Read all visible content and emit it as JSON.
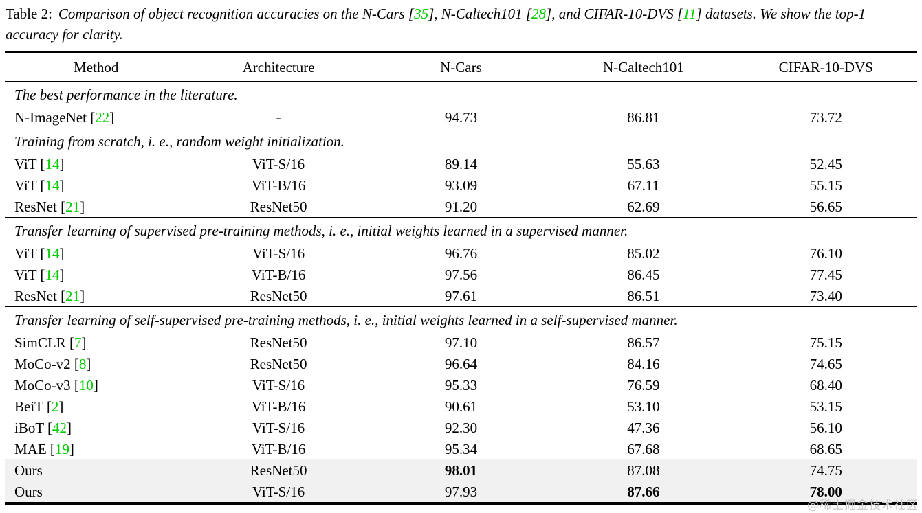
{
  "colors": {
    "citation_green": "#00cc00",
    "highlight_row_bg": "#f1f1f1",
    "rule_color": "#000000",
    "watermark_gray": "#c9c9c9"
  },
  "caption": {
    "label": "Table 2:",
    "segments": [
      {
        "type": "text",
        "text": "Comparison of object recognition accuracies on the N-Cars ["
      },
      {
        "type": "cite",
        "text": "35"
      },
      {
        "type": "text",
        "text": "], N-Caltech101 ["
      },
      {
        "type": "cite",
        "text": "28"
      },
      {
        "type": "text",
        "text": "], and CIFAR-10-DVS ["
      },
      {
        "type": "cite",
        "text": "11"
      },
      {
        "type": "text",
        "text": "] datasets.  We show the top-1 accuracy for clarity."
      }
    ]
  },
  "table": {
    "columns": [
      "Method",
      "Architecture",
      "N-Cars",
      "N-Caltech101",
      "CIFAR-10-DVS"
    ],
    "sections": [
      {
        "title": "The best performance in the literature.",
        "rows": [
          {
            "method": "N-ImageNet",
            "cite": "22",
            "arch": "-",
            "values": [
              "94.73",
              "86.81",
              "73.72"
            ]
          }
        ]
      },
      {
        "title": "Training from scratch, i. e., random weight initialization.",
        "rows": [
          {
            "method": "ViT",
            "cite": "14",
            "arch": "ViT-S/16",
            "values": [
              "89.14",
              "55.63",
              "52.45"
            ]
          },
          {
            "method": "ViT",
            "cite": "14",
            "arch": "ViT-B/16",
            "values": [
              "93.09",
              "67.11",
              "55.15"
            ]
          },
          {
            "method": "ResNet",
            "cite": "21",
            "arch": "ResNet50",
            "values": [
              "91.20",
              "62.69",
              "56.65"
            ]
          }
        ]
      },
      {
        "title": "Transfer learning of supervised pre-training methods, i. e., initial weights learned in a supervised manner.",
        "rows": [
          {
            "method": "ViT",
            "cite": "14",
            "arch": "ViT-S/16",
            "values": [
              "96.76",
              "85.02",
              "76.10"
            ]
          },
          {
            "method": "ViT",
            "cite": "14",
            "arch": "ViT-B/16",
            "values": [
              "97.56",
              "86.45",
              "77.45"
            ]
          },
          {
            "method": "ResNet",
            "cite": "21",
            "arch": "ResNet50",
            "values": [
              "97.61",
              "86.51",
              "73.40"
            ]
          }
        ]
      },
      {
        "title": "Transfer learning of self-supervised pre-training methods, i. e., initial weights learned in a self-supervised manner.",
        "rows": [
          {
            "method": "SimCLR",
            "cite": "7",
            "arch": "ResNet50",
            "values": [
              "97.10",
              "86.57",
              "75.15"
            ]
          },
          {
            "method": "MoCo-v2",
            "cite": "8",
            "arch": "ResNet50",
            "values": [
              "96.64",
              "84.16",
              "74.65"
            ]
          },
          {
            "method": "MoCo-v3",
            "cite": "10",
            "arch": "ViT-S/16",
            "values": [
              "95.33",
              "76.59",
              "68.40"
            ]
          },
          {
            "method": "BeiT",
            "cite": "2",
            "arch": "ViT-B/16",
            "values": [
              "90.61",
              "53.10",
              "53.15"
            ]
          },
          {
            "method": "iBoT",
            "cite": "42",
            "arch": "ViT-S/16",
            "values": [
              "92.30",
              "47.36",
              "56.10"
            ]
          },
          {
            "method": "MAE",
            "cite": "19",
            "arch": "ViT-B/16",
            "values": [
              "95.34",
              "67.68",
              "68.65"
            ]
          },
          {
            "method": "Ours",
            "cite": null,
            "arch": "ResNet50",
            "values": [
              "98.01",
              "87.08",
              "74.75"
            ],
            "bold": [
              true,
              false,
              false
            ],
            "highlight": true
          },
          {
            "method": "Ours",
            "cite": null,
            "arch": "ViT-S/16",
            "values": [
              "97.93",
              "87.66",
              "78.00"
            ],
            "bold": [
              false,
              true,
              true
            ],
            "highlight": true
          }
        ]
      }
    ]
  },
  "watermark": "@稀土掘金技术社区"
}
